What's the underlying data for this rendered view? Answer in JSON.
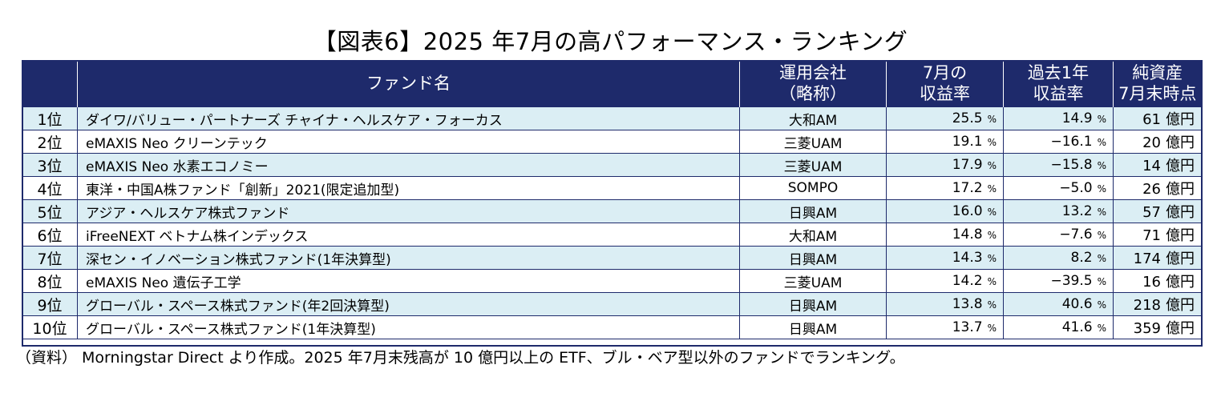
{
  "title": "【図表6】2025 年7月の高パフォーマンス・ランキング",
  "headers": {
    "fund_name": "ファンド名",
    "company_l1": "運用会社",
    "company_l2": "（略称）",
    "return_7_l1": "7月の",
    "return_7_l2": "収益率",
    "return_1y_l1": "過去1年",
    "return_1y_l2": "収益率",
    "assets_l1": "純資産",
    "assets_l2": "7月末時点"
  },
  "units": {
    "percent": "%",
    "oku_yen": "億円"
  },
  "rows": [
    {
      "rank": "1位",
      "fund": "ダイワ/バリュー・パートナーズ チャイナ・ヘルスケア・フォーカス",
      "company": "大和AM",
      "return_7": "25.5",
      "return_1y": "14.9",
      "assets": "61"
    },
    {
      "rank": "2位",
      "fund": "eMAXIS Neo クリーンテック",
      "company": "三菱UAM",
      "return_7": "19.1",
      "return_1y": "−16.1",
      "assets": "20"
    },
    {
      "rank": "3位",
      "fund": "eMAXIS Neo 水素エコノミー",
      "company": "三菱UAM",
      "return_7": "17.9",
      "return_1y": "−15.8",
      "assets": "14"
    },
    {
      "rank": "4位",
      "fund": "東洋・中国A株ファンド「創新」2021(限定追加型)",
      "company": "SOMPO",
      "return_7": "17.2",
      "return_1y": "−5.0",
      "assets": "26"
    },
    {
      "rank": "5位",
      "fund": "アジア・ヘルスケア株式ファンド",
      "company": "日興AM",
      "return_7": "16.0",
      "return_1y": "13.2",
      "assets": "57"
    },
    {
      "rank": "6位",
      "fund": "iFreeNEXT ベトナム株インデックス",
      "company": "大和AM",
      "return_7": "14.8",
      "return_1y": "−7.6",
      "assets": "71"
    },
    {
      "rank": "7位",
      "fund": "深セン・イノベーション株式ファンド(1年決算型)",
      "company": "日興AM",
      "return_7": "14.3",
      "return_1y": "8.2",
      "assets": "174"
    },
    {
      "rank": "8位",
      "fund": "eMAXIS Neo 遺伝子工学",
      "company": "三菱UAM",
      "return_7": "14.2",
      "return_1y": "−39.5",
      "assets": "16"
    },
    {
      "rank": "9位",
      "fund": "グローバル・スペース株式ファンド(年2回決算型)",
      "company": "日興AM",
      "return_7": "13.8",
      "return_1y": "40.6",
      "assets": "218"
    },
    {
      "rank": "10位",
      "fund": "グローバル・スペース株式ファンド(1年決算型)",
      "company": "日興AM",
      "return_7": "13.7",
      "return_1y": "41.6",
      "assets": "359"
    }
  ],
  "footnote": "（資料） Morningstar Direct より作成。2025 年7月末残高が 10 億円以上の ETF、ブル・ベア型以外のファンドでランキング。",
  "colors": {
    "header_bg": "#1e2a6b",
    "stripe_bg": "#dbeef4"
  }
}
